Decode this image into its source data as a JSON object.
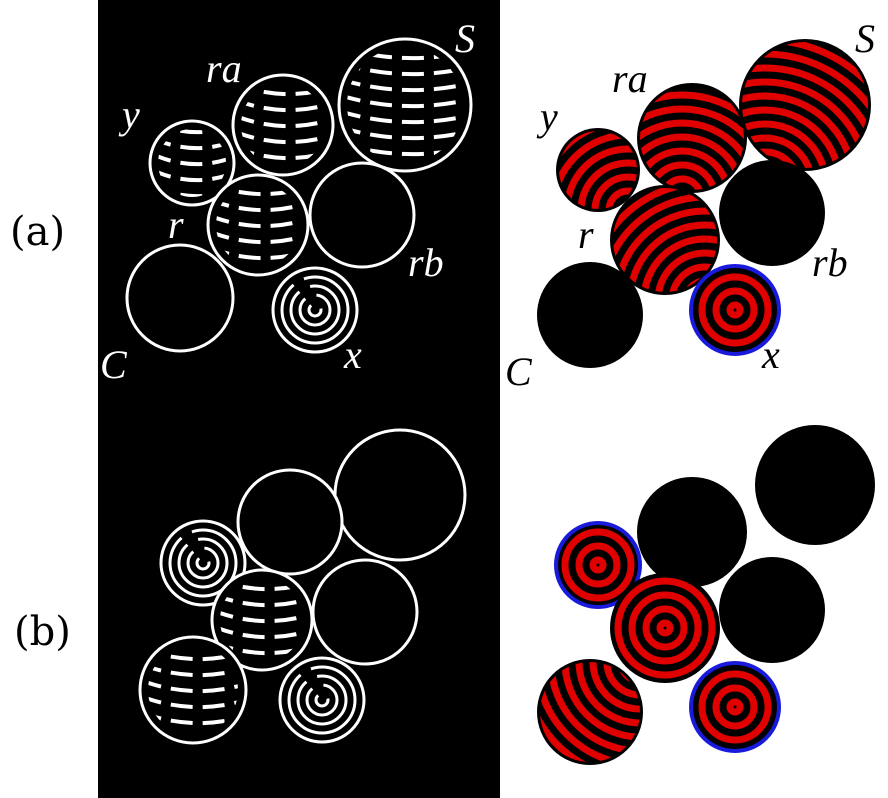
{
  "panels": [
    {
      "label": "(a)",
      "circle_labels": [
        "S",
        "ra",
        "y",
        "r",
        "rb",
        "C",
        "x"
      ]
    },
    {
      "label": "(b)"
    }
  ]
}
